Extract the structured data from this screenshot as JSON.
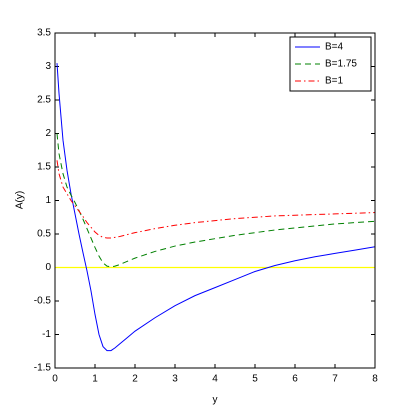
{
  "chart_data": {
    "type": "line",
    "xlabel": "y",
    "ylabel": "A(y)",
    "x": [
      0.05,
      0.1,
      0.2,
      0.3,
      0.4,
      0.5,
      0.6,
      0.7,
      0.8,
      0.9,
      1.0,
      1.1,
      1.2,
      1.3,
      1.4,
      1.5,
      1.6,
      1.8,
      2,
      2.5,
      3,
      3.5,
      4,
      4.5,
      5,
      5.5,
      6,
      6.5,
      7,
      7.5,
      8
    ],
    "series": [
      {
        "name": "B=4",
        "color": "#0000ff",
        "line_style": "-",
        "values": [
          3.05,
          2.6,
          1.9,
          1.45,
          1.1,
          0.8,
          0.5,
          0.22,
          -0.05,
          -0.35,
          -0.7,
          -1.0,
          -1.18,
          -1.24,
          -1.24,
          -1.2,
          -1.15,
          -1.05,
          -0.95,
          -0.75,
          -0.57,
          -0.42,
          -0.3,
          -0.18,
          -0.06,
          0.03,
          0.1,
          0.16,
          0.21,
          0.26,
          0.31
        ]
      },
      {
        "name": "B=1.75",
        "color": "#008000",
        "line_style": "--",
        "values": [
          2.0,
          1.7,
          1.4,
          1.2,
          1.08,
          0.97,
          0.85,
          0.72,
          0.58,
          0.44,
          0.3,
          0.17,
          0.07,
          0.02,
          0.01,
          0.02,
          0.04,
          0.09,
          0.14,
          0.24,
          0.32,
          0.38,
          0.43,
          0.48,
          0.52,
          0.56,
          0.59,
          0.62,
          0.65,
          0.67,
          0.69
        ]
      },
      {
        "name": "B=1",
        "color": "#ff0000",
        "line_style": "-.",
        "values": [
          1.6,
          1.4,
          1.2,
          1.1,
          1.0,
          0.92,
          0.84,
          0.76,
          0.67,
          0.6,
          0.53,
          0.48,
          0.45,
          0.44,
          0.44,
          0.45,
          0.46,
          0.49,
          0.52,
          0.58,
          0.63,
          0.67,
          0.7,
          0.73,
          0.75,
          0.77,
          0.78,
          0.79,
          0.8,
          0.81,
          0.82
        ]
      }
    ],
    "reference_line": {
      "y": 0,
      "color": "#ffff00"
    },
    "xlim": [
      0,
      8
    ],
    "xticks": [
      0,
      1,
      2,
      3,
      4,
      5,
      6,
      7,
      8
    ],
    "ylim": [
      -1.5,
      3.5
    ],
    "yticks": [
      -1.5,
      -1,
      -0.5,
      0,
      0.5,
      1,
      1.5,
      2,
      2.5,
      3,
      3.5
    ],
    "grid": false,
    "legend": "northeast"
  }
}
